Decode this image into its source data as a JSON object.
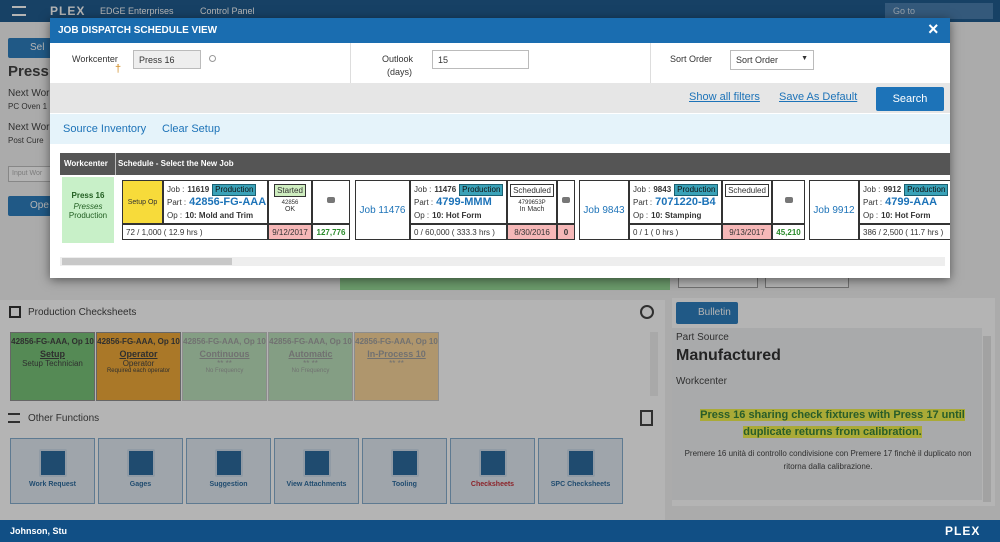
{
  "nav": {
    "company": "EDGE Enterprises",
    "page": "Control Panel",
    "search_placeholder": "Go to",
    "logo": "PLEX"
  },
  "background": {
    "select_button": "Sel",
    "heading": "Press",
    "next_work_1": "Next Wor",
    "next_work_1_value": "PC Oven 1",
    "next_work_2": "Next Wor",
    "next_work_2_value": "Post Cure",
    "input_placeholder": "Input Wor",
    "open_button": "Ope"
  },
  "modal": {
    "title": "JOB DISPATCH SCHEDULE VIEW",
    "close": "×",
    "filters": {
      "workcenter_label": "Workcenter",
      "workcenter_value": "Press 16",
      "outlook_label": "Outlook",
      "outlook_unit": "(days)",
      "outlook_value": "15",
      "sort_label": "Sort Order",
      "sort_value": "Sort Order"
    },
    "actions": {
      "show_filters": "Show all filters",
      "save_default": "Save As Default",
      "search": "Search"
    },
    "tabs": {
      "source_inventory": "Source Inventory",
      "clear_setup": "Clear Setup"
    },
    "table": {
      "headers": [
        "Workcenter",
        "Schedule - Select the New Job"
      ],
      "workcenter": {
        "name": "Press 16",
        "group": "Presses",
        "type": "Production"
      },
      "jobs": [
        {
          "lead": "Setup Op",
          "job_label": "Job :",
          "job_number": "11619",
          "badge": "Production",
          "part_label": "Part :",
          "part_number": "42856-FG-AAA",
          "op_label": "Op :",
          "operation": "10: Mold and Trim",
          "state": "Started",
          "state_detail": [
            "42856",
            "OK"
          ],
          "quantity": "72 / 1,000 ( 12.9 hrs )",
          "due_date": "9/12/2017",
          "count": "127,776"
        },
        {
          "lead": "Job 11476",
          "job_label": "Job :",
          "job_number": "11476",
          "badge": "Production",
          "part_label": "Part :",
          "part_number": "4799-MMM",
          "op_label": "Op :",
          "operation": "10: Hot Form",
          "state": "Scheduled",
          "state_detail": [
            "4799653P",
            "In Mach"
          ],
          "quantity": "0 / 60,000 ( 333.3 hrs )",
          "due_date": "8/30/2016",
          "count": "0"
        },
        {
          "lead": "Job 9843",
          "job_label": "Job :",
          "job_number": "9843",
          "badge": "Production",
          "part_label": "Part :",
          "part_number": "7071220-B4",
          "op_label": "Op :",
          "operation": "10: Stamping",
          "state": "Scheduled",
          "state_detail": [],
          "quantity": "0 / 1 ( 0 hrs )",
          "due_date": "9/13/2017",
          "count": "45,210"
        },
        {
          "lead": "Job 9912",
          "job_label": "Job :",
          "job_number": "9912",
          "badge": "Production",
          "part_label": "Part :",
          "part_number": "4799-AAA",
          "op_label": "Op :",
          "operation": "10: Hot Form",
          "quantity": "386 / 2,500 ( 11.7 hrs )"
        }
      ]
    }
  },
  "checksheets": {
    "title": "Production Checksheets",
    "tiles": [
      {
        "title": "42856-FG-AAA, Op 10",
        "name": "Setup",
        "role": "Setup Technician"
      },
      {
        "title": "42856-FG-AAA, Op 10",
        "name": "Operator",
        "role": "Operator",
        "note": "Required each operator"
      },
      {
        "title": "42856-FG-AAA, Op 10",
        "name": "Continuous",
        "role": "** **",
        "note": "No Frequency"
      },
      {
        "title": "42856-FG-AAA, Op 10",
        "name": "Automatic",
        "role": "** **",
        "note": "No Frequency"
      },
      {
        "title": "42856-FG-AAA, Op 10",
        "name": "In-Process 10",
        "role": "** **"
      }
    ]
  },
  "other_functions": {
    "title": "Other Functions",
    "buttons": [
      "Work Request",
      "Gages",
      "Suggestion",
      "View Attachments",
      "Tooling",
      "Checksheets",
      "SPC Checksheets"
    ]
  },
  "bulletin": {
    "button": "Bulletin",
    "part_source_label": "Part Source",
    "part_source": "Manufactured",
    "workcenter_label": "Workcenter",
    "message": "Press 16 sharing check fixtures with Press 17 until duplicate returns from calibration.",
    "translation": "Premere 16 unità di controllo condivisione con Premere 17 finchè il duplicato non ritorna dalla calibrazione."
  },
  "footer": {
    "user": "Johnson, Stu",
    "logo": "PLEX"
  }
}
